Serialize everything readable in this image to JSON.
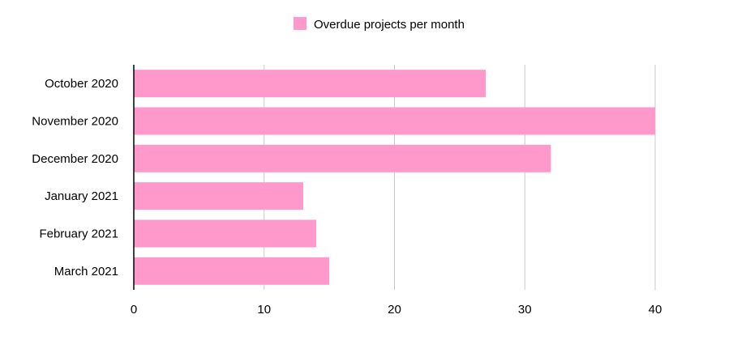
{
  "chart_data": {
    "type": "bar",
    "orientation": "horizontal",
    "categories": [
      "October 2020",
      "November 2020",
      "December 2020",
      "January 2021",
      "February 2021",
      "March 2021"
    ],
    "series": [
      {
        "name": "Overdue projects per month",
        "values": [
          27,
          40,
          32,
          13,
          14,
          15
        ],
        "color": "#ff99cc"
      }
    ],
    "xlim": [
      0,
      40
    ],
    "x_ticks": [
      0,
      10,
      20,
      30,
      40
    ],
    "grid": "vertical",
    "legend": "top-center"
  }
}
